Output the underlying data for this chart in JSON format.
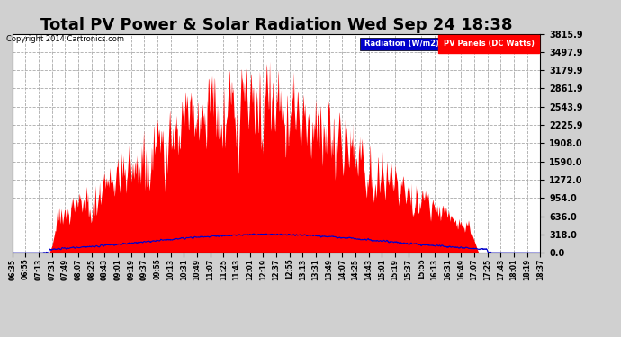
{
  "title": "Total PV Power & Solar Radiation Wed Sep 24 18:38",
  "copyright": "Copyright 2014 Cartronics.com",
  "legend_radiation": "Radiation (W/m2)",
  "legend_pv": "PV Panels (DC Watts)",
  "ymax": 3815.9,
  "yticks": [
    0.0,
    318.0,
    636.0,
    954.0,
    1272.0,
    1590.0,
    1908.0,
    2225.9,
    2543.9,
    2861.9,
    3179.9,
    3497.9,
    3815.9
  ],
  "fig_bg_color": "#d0d0d0",
  "plot_bg_color": "#ffffff",
  "red_color": "#ff0000",
  "blue_color": "#0000cc",
  "grid_color": "#aaaaaa",
  "title_fontsize": 13,
  "xtick_labels": [
    "06:35",
    "06:55",
    "07:13",
    "07:31",
    "07:49",
    "08:07",
    "08:25",
    "08:43",
    "09:01",
    "09:19",
    "09:37",
    "09:55",
    "10:13",
    "10:31",
    "10:49",
    "11:07",
    "11:25",
    "11:43",
    "12:01",
    "12:19",
    "12:37",
    "12:55",
    "13:13",
    "13:31",
    "13:49",
    "14:07",
    "14:25",
    "14:43",
    "15:01",
    "15:19",
    "15:37",
    "15:55",
    "16:13",
    "16:31",
    "16:49",
    "17:07",
    "17:25",
    "17:43",
    "18:01",
    "18:19",
    "18:37"
  ]
}
